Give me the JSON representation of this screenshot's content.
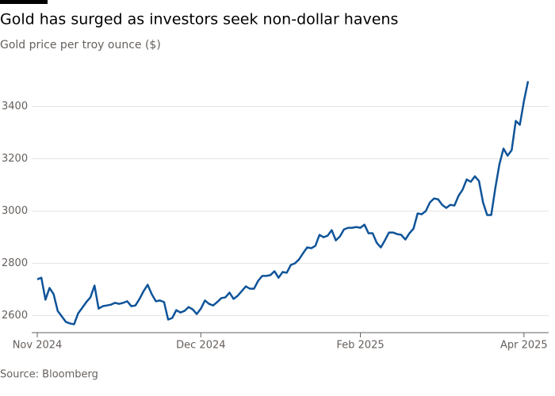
{
  "chart_data": {
    "type": "line",
    "title": "Gold has surged as investors seek non-dollar havens",
    "subtitle": "Gold price per troy ounce ($)",
    "source": "Source: Bloomberg",
    "color": "#0f5499",
    "grid": true,
    "ylim": [
      2535,
      3565
    ],
    "yticks": [
      2600,
      2800,
      3000,
      3200,
      3400
    ],
    "categories": [
      "Nov 2024",
      null,
      null,
      null,
      null,
      null,
      null,
      null,
      null,
      null,
      null,
      null,
      null,
      null,
      null,
      null,
      null,
      null,
      null,
      null,
      null,
      null,
      null,
      null,
      null,
      null,
      null,
      null,
      null,
      null,
      null,
      null,
      null,
      null,
      null,
      null,
      null,
      null,
      null,
      null,
      "Dec 2024",
      null,
      null,
      null,
      null,
      null,
      null,
      null,
      null,
      null,
      null,
      null,
      null,
      null,
      null,
      null,
      null,
      null,
      null,
      null,
      null,
      null,
      null,
      null,
      null,
      null,
      null,
      null,
      null,
      null,
      null,
      null,
      null,
      null,
      null,
      null,
      null,
      null,
      null,
      "Feb 2025",
      null,
      null,
      null,
      null,
      null,
      null,
      null,
      null,
      null,
      null,
      null,
      null,
      null,
      null,
      null,
      null,
      null,
      null,
      null,
      null,
      null,
      null,
      null,
      null,
      null,
      null,
      null,
      null,
      null,
      null,
      null,
      null,
      null,
      null,
      null,
      null,
      null,
      null,
      null,
      "Apr 2025",
      null
    ],
    "values": [
      2739,
      2745,
      2661,
      2706,
      2682,
      2618,
      2597,
      2576,
      2570,
      2567,
      2609,
      2630,
      2652,
      2670,
      2715,
      2627,
      2636,
      2639,
      2642,
      2649,
      2645,
      2649,
      2655,
      2636,
      2639,
      2664,
      2694,
      2718,
      2682,
      2655,
      2658,
      2652,
      2585,
      2591,
      2621,
      2612,
      2618,
      2633,
      2624,
      2606,
      2627,
      2658,
      2645,
      2639,
      2652,
      2667,
      2670,
      2688,
      2664,
      2676,
      2694,
      2712,
      2703,
      2703,
      2733,
      2752,
      2752,
      2755,
      2770,
      2745,
      2767,
      2764,
      2794,
      2800,
      2815,
      2839,
      2861,
      2858,
      2867,
      2909,
      2900,
      2906,
      2927,
      2888,
      2903,
      2930,
      2936,
      2936,
      2939,
      2936,
      2948,
      2915,
      2915,
      2879,
      2861,
      2888,
      2918,
      2918,
      2912,
      2909,
      2891,
      2915,
      2933,
      2991,
      2988,
      3000,
      3033,
      3048,
      3045,
      3024,
      3012,
      3024,
      3021,
      3058,
      3082,
      3121,
      3112,
      3133,
      3115,
      3033,
      2985,
      2985,
      3088,
      3179,
      3239,
      3212,
      3233,
      3345,
      3330,
      3421,
      3497
    ]
  }
}
